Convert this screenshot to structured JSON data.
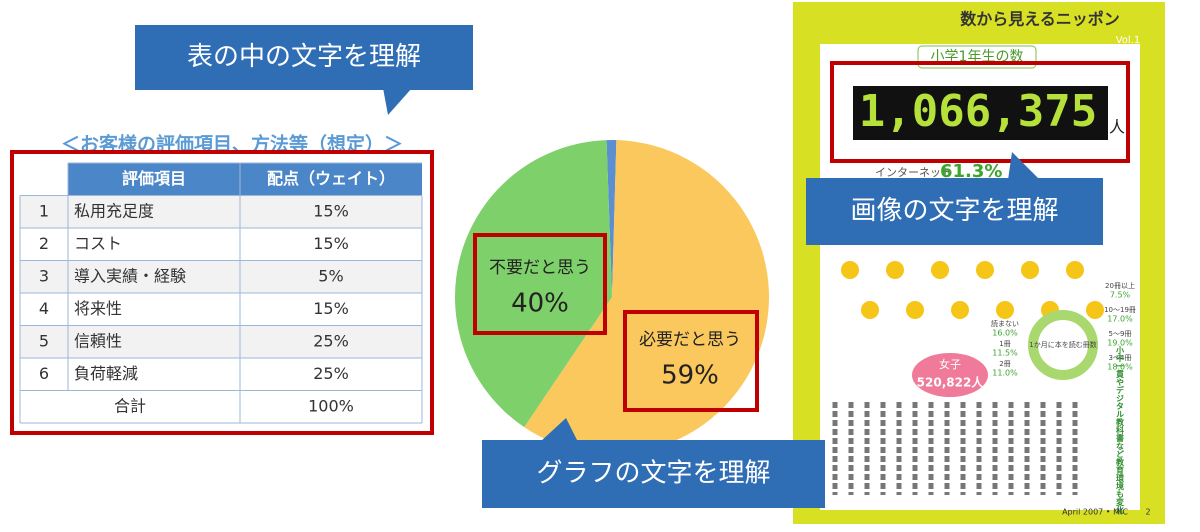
{
  "callouts": {
    "table": "表の中の文字を理解",
    "graph": "グラフの文字を理解",
    "image": "画像の文字を理解"
  },
  "table": {
    "caption": "＜お客様の評価項目、方法等（想定）＞",
    "header": [
      "評価項目",
      "配点（ウェイト）"
    ],
    "rows": [
      [
        "1",
        "私用充足度",
        "15%"
      ],
      [
        "2",
        "コスト",
        "15%"
      ],
      [
        "3",
        "導入実績・経験",
        "5%"
      ],
      [
        "4",
        "将来性",
        "15%"
      ],
      [
        "5",
        "信頼性",
        "25%"
      ],
      [
        "6",
        "負荷軽減",
        "25%"
      ]
    ],
    "total": [
      "合計",
      "100%"
    ]
  },
  "chart_data": {
    "type": "pie",
    "categories": [
      null,
      "必要だと思う",
      "不要だと思う"
    ],
    "values": [
      1,
      59,
      40
    ],
    "value_labels": [
      null,
      "59%",
      "40%"
    ],
    "colors": [
      "#5b8fd0",
      "#fbc85e",
      "#7ed06a"
    ]
  },
  "magazine": {
    "title": "数から見えるニッポン",
    "vol": "Vol.1",
    "heading": "小学1年生の数",
    "number": "1,066,375",
    "unit": "人",
    "stat": "61.3%",
    "stat_label": "インターネット",
    "girls_label": "女子",
    "girls": "520,822人",
    "donut_center": "1か月に本を読む冊数",
    "legend": [
      [
        "20冊以上",
        "7.5%"
      ],
      [
        "10～19冊",
        "17.0%"
      ],
      [
        "5～9冊",
        "19.0%"
      ],
      [
        "3～4冊",
        "18.0%"
      ],
      [
        "読まない",
        "16.0%"
      ],
      [
        "1冊",
        "11.5%"
      ],
      [
        "2冊",
        "11.0%"
      ]
    ],
    "side_heading": "小中一貫やデジタル教科書など教育環境も変化",
    "footer": "April 2007 • MIC",
    "page": "2"
  }
}
